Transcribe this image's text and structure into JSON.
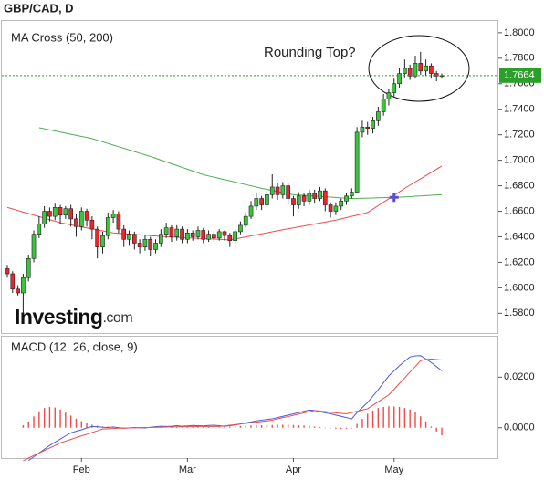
{
  "chart_data": [
    {
      "type": "candlestick",
      "title": "GBP/CAD, D",
      "subtitle": "MA Cross (50, 200)",
      "annotation": "Rounding Top?",
      "logo": {
        "brand": "Investing",
        "suffix": ".com"
      },
      "categories": [
        null,
        null,
        null,
        null,
        null,
        null,
        null,
        null,
        null,
        null,
        null,
        null,
        null,
        null,
        "Feb",
        null,
        null,
        null,
        null,
        null,
        null,
        null,
        null,
        null,
        null,
        null,
        null,
        null,
        null,
        null,
        null,
        null,
        null,
        null,
        "Mar",
        null,
        null,
        null,
        null,
        null,
        null,
        null,
        null,
        null,
        null,
        null,
        null,
        null,
        null,
        null,
        null,
        null,
        null,
        null,
        "Apr",
        null,
        null,
        null,
        null,
        null,
        null,
        null,
        null,
        null,
        null,
        null,
        null,
        null,
        null,
        null,
        null,
        null,
        null,
        "May",
        null,
        null,
        null,
        null,
        null,
        null,
        null,
        null,
        null
      ],
      "open": [
        1.615,
        1.611,
        1.599,
        1.596,
        1.608,
        1.623,
        1.642,
        1.65,
        1.66,
        1.656,
        1.663,
        1.657,
        1.662,
        1.654,
        1.648,
        1.66,
        1.653,
        1.646,
        1.632,
        1.641,
        1.655,
        1.658,
        1.646,
        1.638,
        1.642,
        1.635,
        1.632,
        1.638,
        1.63,
        1.635,
        1.642,
        1.647,
        1.64,
        1.646,
        1.638,
        1.643,
        1.64,
        1.645,
        1.638,
        1.642,
        1.639,
        1.644,
        1.641,
        1.637,
        1.644,
        1.649,
        1.656,
        1.664,
        1.67,
        1.665,
        1.673,
        1.679,
        1.673,
        1.68,
        1.67,
        1.665,
        1.672,
        1.668,
        1.674,
        1.67,
        1.676,
        1.665,
        1.66,
        1.664,
        1.668,
        1.672,
        1.675,
        1.722,
        1.726,
        1.725,
        1.731,
        1.738,
        1.748,
        1.753,
        1.76,
        1.768,
        1.772,
        1.766,
        1.776,
        1.77,
        1.774,
        1.768,
        1.766
      ],
      "high": [
        1.618,
        1.613,
        1.602,
        1.611,
        1.626,
        1.645,
        1.656,
        1.664,
        1.663,
        1.666,
        1.665,
        1.664,
        1.665,
        1.658,
        1.663,
        1.662,
        1.656,
        1.648,
        1.644,
        1.659,
        1.661,
        1.66,
        1.649,
        1.645,
        1.644,
        1.638,
        1.641,
        1.64,
        1.638,
        1.646,
        1.651,
        1.649,
        1.649,
        1.648,
        1.646,
        1.645,
        1.648,
        1.647,
        1.645,
        1.644,
        1.646,
        1.645,
        1.643,
        1.646,
        1.652,
        1.659,
        1.668,
        1.674,
        1.672,
        1.676,
        1.689,
        1.682,
        1.683,
        1.682,
        1.672,
        1.675,
        1.674,
        1.677,
        1.677,
        1.679,
        1.678,
        1.667,
        1.667,
        1.67,
        1.674,
        1.678,
        1.726,
        1.731,
        1.73,
        1.734,
        1.742,
        1.752,
        1.756,
        1.764,
        1.772,
        1.779,
        1.775,
        1.782,
        1.785,
        1.779,
        1.776,
        1.77,
        1.768
      ],
      "low": [
        1.608,
        1.596,
        1.594,
        1.58,
        1.605,
        1.62,
        1.639,
        1.647,
        1.652,
        1.653,
        1.65,
        1.654,
        1.648,
        1.64,
        1.645,
        1.648,
        1.638,
        1.623,
        1.627,
        1.638,
        1.651,
        1.643,
        1.632,
        1.633,
        1.63,
        1.627,
        1.629,
        1.625,
        1.627,
        1.632,
        1.639,
        1.636,
        1.637,
        1.635,
        1.635,
        1.637,
        1.638,
        1.635,
        1.636,
        1.636,
        1.637,
        1.637,
        1.632,
        1.634,
        1.642,
        1.647,
        1.654,
        1.661,
        1.661,
        1.662,
        1.67,
        1.669,
        1.67,
        1.665,
        1.656,
        1.662,
        1.664,
        1.665,
        1.666,
        1.668,
        1.66,
        1.655,
        1.657,
        1.661,
        1.665,
        1.67,
        1.674,
        1.718,
        1.72,
        1.721,
        1.727,
        1.735,
        1.743,
        1.75,
        1.757,
        1.765,
        1.763,
        1.764,
        1.767,
        1.766,
        1.764,
        1.762,
        1.764
      ],
      "close": [
        1.611,
        1.599,
        1.596,
        1.608,
        1.623,
        1.642,
        1.65,
        1.66,
        1.656,
        1.663,
        1.657,
        1.662,
        1.654,
        1.648,
        1.66,
        1.653,
        1.646,
        1.632,
        1.641,
        1.655,
        1.658,
        1.646,
        1.638,
        1.642,
        1.635,
        1.632,
        1.638,
        1.63,
        1.635,
        1.642,
        1.647,
        1.64,
        1.646,
        1.638,
        1.643,
        1.64,
        1.645,
        1.638,
        1.642,
        1.639,
        1.644,
        1.641,
        1.637,
        1.644,
        1.649,
        1.656,
        1.664,
        1.67,
        1.665,
        1.673,
        1.679,
        1.673,
        1.68,
        1.67,
        1.665,
        1.672,
        1.668,
        1.674,
        1.67,
        1.676,
        1.665,
        1.66,
        1.664,
        1.668,
        1.672,
        1.675,
        1.722,
        1.726,
        1.725,
        1.731,
        1.738,
        1.748,
        1.753,
        1.76,
        1.768,
        1.772,
        1.766,
        1.776,
        1.77,
        1.774,
        1.768,
        1.766,
        1.7664
      ],
      "up_color": "#3cc43c",
      "down_color": "#e8262c",
      "last_color": "#2aa02a",
      "series": [
        {
          "color": "#ee4b4b",
          "values": [
            1.663,
            1.6618,
            1.6606,
            1.6594,
            1.6582,
            1.657,
            1.6558,
            1.6546,
            1.6534,
            1.6522,
            1.651,
            1.6502,
            1.6494,
            1.6486,
            1.6478,
            1.647,
            1.6462,
            1.6454,
            1.6446,
            1.6438,
            1.643,
            1.6427,
            1.6424,
            1.6421,
            1.6418,
            1.6415,
            1.6412,
            1.6409,
            1.6406,
            1.6403,
            1.64,
            1.6398,
            1.6396,
            1.6394,
            1.6392,
            1.639,
            1.6388,
            1.6386,
            1.6384,
            1.6382,
            1.638,
            1.6378,
            1.6375,
            1.6383,
            1.6391,
            1.6399,
            1.6407,
            1.6415,
            1.6423,
            1.6431,
            1.6439,
            1.6447,
            1.6455,
            1.6463,
            1.647,
            1.6478,
            1.6485,
            1.6493,
            1.65,
            1.6508,
            1.6515,
            1.6523,
            1.653,
            1.654,
            1.655,
            1.656,
            1.657,
            1.658,
            1.659,
            1.6617,
            1.6644,
            1.6671,
            1.6698,
            1.6725,
            1.6752,
            1.678,
            1.6805,
            1.683,
            1.6855,
            1.688,
            1.6905,
            1.693,
            1.6955
          ]
        },
        {
          "color": "#4caf50",
          "values": [
            null,
            null,
            null,
            null,
            null,
            null,
            1.7255,
            1.7247,
            1.7238,
            1.723,
            1.7221,
            1.7213,
            1.7204,
            1.7196,
            1.7187,
            1.7179,
            1.717,
            1.7157,
            1.7145,
            1.7132,
            1.7119,
            1.7106,
            1.7094,
            1.7081,
            1.7068,
            1.7055,
            1.7043,
            1.703,
            1.7016,
            1.7001,
            1.6987,
            1.6973,
            1.6959,
            1.6944,
            1.693,
            1.6916,
            1.6901,
            1.6887,
            1.6877,
            1.6868,
            1.6858,
            1.6848,
            1.6839,
            1.6829,
            1.6819,
            1.6809,
            1.68,
            1.679,
            1.678,
            1.6772,
            1.6763,
            1.6755,
            1.6747,
            1.6738,
            1.673,
            1.6727,
            1.6725,
            1.6722,
            1.6719,
            1.6716,
            1.6714,
            1.6711,
            1.6708,
            1.6705,
            1.6703,
            1.67,
            1.6701,
            1.6702,
            1.6703,
            1.6704,
            1.6706,
            1.6707,
            1.6708,
            1.6709,
            1.671,
            1.6713,
            1.6715,
            1.6718,
            1.672,
            1.6723,
            1.6725,
            1.6728,
            1.673
          ]
        }
      ],
      "ylim": [
        1.5645,
        1.8092
      ],
      "yticks": [
        {
          "value": 1.58,
          "label": "1.5800"
        },
        {
          "value": 1.6,
          "label": "1.6000"
        },
        {
          "value": 1.62,
          "label": "1.6200"
        },
        {
          "value": 1.64,
          "label": "1.6400"
        },
        {
          "value": 1.66,
          "label": "1.6600"
        },
        {
          "value": 1.68,
          "label": "1.6800"
        },
        {
          "value": 1.7,
          "label": "1.7000"
        },
        {
          "value": 1.72,
          "label": "1.7200"
        },
        {
          "value": 1.74,
          "label": "1.7400"
        },
        {
          "value": 1.76,
          "label": "1.7600"
        },
        {
          "value": 1.78,
          "label": "1.7800"
        },
        {
          "value": 1.8,
          "label": "1.8000"
        }
      ],
      "grid": false
    },
    {
      "type": "macd",
      "title": "MACD (12, 26, close, 9)",
      "series": [
        {
          "color": "#4a5bdc",
          "values": [
            null,
            null,
            null,
            null,
            -0.013,
            -0.0115,
            -0.01,
            -0.0085,
            -0.007,
            -0.0057,
            -0.0045,
            -0.0032,
            -0.002,
            -0.0014,
            -0.0008,
            -0.0001,
            0.0005,
            0.0004,
            0.0002,
            0.0001,
            0.0003,
            0.0,
            -0.0002,
            -0.0001,
            0.0001,
            0.0,
            -0.0001,
            0.0002,
            0.0004,
            0.0006,
            0.0005,
            0.0006,
            0.0008,
            0.0006,
            0.0007,
            0.0009,
            0.0008,
            0.0007,
            0.0009,
            0.001,
            0.0008,
            0.0006,
            0.0008,
            0.0011,
            0.0015,
            0.0019,
            0.0023,
            0.0027,
            0.003,
            0.0033,
            0.0035,
            0.004,
            0.0045,
            0.005,
            0.0055,
            0.006,
            0.0065,
            0.007,
            0.0068,
            0.0063,
            0.0059,
            0.0055,
            0.005,
            0.0045,
            0.004,
            0.0035,
            0.006,
            0.008,
            0.01,
            0.0125,
            0.015,
            0.0178,
            0.0205,
            0.0225,
            0.0245,
            0.0263,
            0.028,
            0.0284,
            0.0285,
            0.0272,
            0.0258,
            0.0242,
            0.0225
          ]
        },
        {
          "color": "#ee4b4b",
          "values": [
            null,
            null,
            null,
            -0.013,
            -0.012,
            -0.011,
            -0.01,
            -0.009,
            -0.008,
            -0.007,
            -0.006,
            -0.0053,
            -0.0046,
            -0.0039,
            -0.0032,
            -0.0026,
            -0.0019,
            -0.0012,
            -0.0005,
            -0.0004,
            -0.0003,
            -0.0002,
            -0.0002,
            -0.0001,
            0.0,
            0.0,
            0.0001,
            0.0001,
            0.0002,
            0.0002,
            0.0003,
            0.0003,
            0.0003,
            0.0004,
            0.0004,
            0.0004,
            0.0005,
            0.0005,
            0.0005,
            0.0005,
            0.0005,
            0.0007,
            0.001,
            0.0012,
            0.0015,
            0.0017,
            0.002,
            0.0022,
            0.0025,
            0.0027,
            0.003,
            0.0035,
            0.004,
            0.0044,
            0.0049,
            0.0054,
            0.0059,
            0.0063,
            0.0068,
            0.0066,
            0.0064,
            0.0061,
            0.0059,
            0.0057,
            0.0055,
            0.006,
            0.0065,
            0.007,
            0.0075,
            0.0089,
            0.0103,
            0.0116,
            0.013,
            0.0152,
            0.0175,
            0.0197,
            0.022,
            0.0242,
            0.0265,
            0.027,
            0.0272,
            0.027,
            0.0268
          ]
        }
      ],
      "histogram": {
        "color": "#ee4b4b",
        "values": [
          null,
          null,
          null,
          0.001,
          0.0025,
          0.0045,
          0.0065,
          0.0078,
          0.0082,
          0.008,
          0.0072,
          0.006,
          0.0048,
          0.0036,
          0.0026,
          0.0018,
          0.0012,
          0.0008,
          0.0005,
          0.0004,
          0.0003,
          0.0002,
          0.0001,
          -0.0001,
          -0.0002,
          -0.0001,
          0.0,
          0.0001,
          0.0002,
          0.0003,
          0.0004,
          0.0004,
          0.0005,
          0.0005,
          0.0004,
          0.0004,
          0.0005,
          0.0004,
          0.0003,
          0.0003,
          0.0002,
          0.0004,
          0.0005,
          0.0006,
          0.0007,
          0.0008,
          0.0009,
          0.001,
          0.001,
          0.0011,
          0.0011,
          0.0012,
          0.0012,
          0.0012,
          0.0011,
          0.001,
          0.0009,
          0.0008,
          0.0005,
          0.0003,
          0.0,
          -0.0002,
          -0.0004,
          -0.0005,
          -0.0004,
          -0.0002,
          0.0015,
          0.0035,
          0.0055,
          0.0068,
          0.0078,
          0.0082,
          0.0085,
          0.0084,
          0.0082,
          0.0078,
          0.0072,
          0.0062,
          0.0045,
          0.0025,
          0.0005,
          -0.0015,
          -0.003
        ]
      },
      "ylim": [
        -0.012,
        0.036
      ],
      "yticks": [
        {
          "value": 0,
          "label": "0.0000"
        },
        {
          "value": 0.02,
          "label": "0.0200"
        }
      ],
      "grid": false
    }
  ]
}
